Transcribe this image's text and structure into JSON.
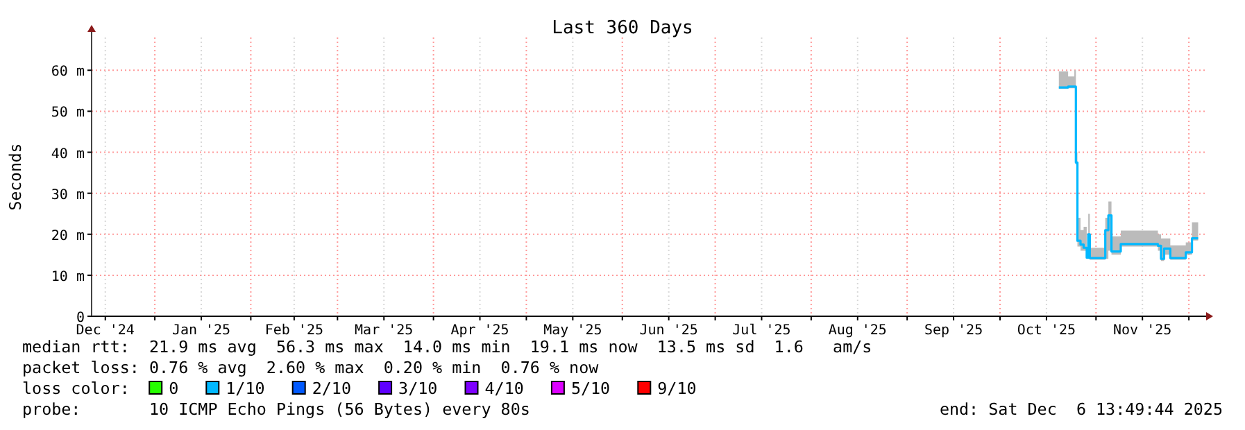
{
  "chart_data": {
    "type": "line",
    "title": "Last 360 Days",
    "ylabel": "Seconds",
    "xlim": [
      "2024-12-11T13:49",
      "2025-12-06T13:49"
    ],
    "xticks": [
      {
        "value": "2024-12-16",
        "label": "Dec '24"
      },
      {
        "value": "2025-01-01",
        "label": null
      },
      {
        "value": "2025-01-16",
        "label": "Jan '25"
      },
      {
        "value": "2025-02-01",
        "label": null
      },
      {
        "value": "2025-02-15",
        "label": "Feb '25"
      },
      {
        "value": "2025-03-01",
        "label": null
      },
      {
        "value": "2025-03-16",
        "label": "Mar '25"
      },
      {
        "value": "2025-04-01",
        "label": null
      },
      {
        "value": "2025-04-16",
        "label": "Apr '25"
      },
      {
        "value": "2025-05-01",
        "label": null
      },
      {
        "value": "2025-05-16",
        "label": "May '25"
      },
      {
        "value": "2025-06-01",
        "label": null
      },
      {
        "value": "2025-06-16",
        "label": "Jun '25"
      },
      {
        "value": "2025-07-01",
        "label": null
      },
      {
        "value": "2025-07-16",
        "label": "Jul '25"
      },
      {
        "value": "2025-08-01",
        "label": null
      },
      {
        "value": "2025-08-16",
        "label": "Aug '25"
      },
      {
        "value": "2025-09-01",
        "label": null
      },
      {
        "value": "2025-09-16",
        "label": "Sep '25"
      },
      {
        "value": "2025-10-01",
        "label": null
      },
      {
        "value": "2025-10-16",
        "label": "Oct '25"
      },
      {
        "value": "2025-11-01",
        "label": null
      },
      {
        "value": "2025-11-16",
        "label": "Nov '25"
      },
      {
        "value": "2025-12-01",
        "label": null
      }
    ],
    "ylim": [
      0,
      68
    ],
    "yticks": [
      {
        "value": 0,
        "label": "0"
      },
      {
        "value": 10,
        "label": "10 m"
      },
      {
        "value": 20,
        "label": "20 m"
      },
      {
        "value": 30,
        "label": "30 m"
      },
      {
        "value": 40,
        "label": "40 m"
      },
      {
        "value": 50,
        "label": "50 m"
      },
      {
        "value": 60,
        "label": "60 m"
      }
    ],
    "grid": true,
    "legend": "bottom",
    "legend_title": "loss color:",
    "x": [
      "2025-10-20",
      "2025-10-23",
      "2025-10-25",
      "2025-10-25T12:00",
      "2025-10-26",
      "2025-10-27",
      "2025-10-28",
      "2025-10-29",
      "2025-10-29T12:00",
      "2025-10-30",
      "2025-11-03",
      "2025-11-04",
      "2025-11-05",
      "2025-11-06",
      "2025-11-08",
      "2025-11-09",
      "2025-11-20",
      "2025-11-21",
      "2025-11-22",
      "2025-11-23",
      "2025-11-25",
      "2025-11-29",
      "2025-11-30",
      "2025-12-02",
      "2025-12-04"
    ],
    "series": [
      {
        "color": "#00b8ff",
        "values": [
          55.8,
          56,
          56,
          37.5,
          18.4,
          17.5,
          16.7,
          14.3,
          20,
          14.2,
          14.2,
          21,
          24.6,
          15.8,
          15.8,
          17.6,
          17.6,
          17.2,
          14,
          16.5,
          14.2,
          14.2,
          15.6,
          19,
          19
        ],
        "lower": [
          55.5,
          55.6,
          55.6,
          37,
          17,
          16,
          16,
          14,
          14,
          13.8,
          13.8,
          14,
          16,
          15,
          15,
          17,
          17,
          16,
          13.5,
          15,
          13.8,
          13.8,
          15,
          18.5,
          18.5
        ],
        "upper": [
          59.7,
          58.5,
          60,
          40,
          24,
          21,
          21.8,
          16,
          25,
          16.7,
          16.7,
          24,
          28,
          19.5,
          19.5,
          20.9,
          20.9,
          20,
          19,
          19,
          17.3,
          17.3,
          18,
          22.9,
          22.9
        ]
      },
      {
        "name": "0",
        "color": "#26ff00",
        "values": [
          null,
          null,
          null,
          null,
          null,
          null,
          null,
          null,
          null,
          null,
          null,
          null,
          null,
          null,
          null,
          null,
          null,
          null,
          null,
          null,
          null,
          null,
          null,
          null,
          null
        ]
      },
      {
        "name": "1/10",
        "color": "#00b8ff",
        "values": [
          null,
          null,
          null,
          null,
          null,
          null,
          null,
          null,
          null,
          null,
          null,
          null,
          null,
          null,
          null,
          null,
          null,
          null,
          null,
          null,
          null,
          null,
          null,
          null,
          null
        ]
      },
      {
        "name": "2/10",
        "color": "#0059ff",
        "values": [
          null,
          null,
          null,
          null,
          null,
          null,
          null,
          null,
          null,
          null,
          null,
          null,
          null,
          null,
          null,
          null,
          null,
          null,
          null,
          null,
          null,
          null,
          null,
          null,
          null
        ]
      },
      {
        "name": "3/10",
        "color": "#5e00ff",
        "values": [
          null,
          null,
          null,
          null,
          null,
          null,
          null,
          null,
          null,
          null,
          null,
          null,
          null,
          null,
          null,
          null,
          null,
          null,
          null,
          null,
          null,
          null,
          null,
          null,
          null
        ]
      },
      {
        "name": "4/10",
        "color": "#7e00ff",
        "values": [
          null,
          null,
          null,
          null,
          null,
          null,
          null,
          null,
          null,
          null,
          null,
          null,
          null,
          null,
          null,
          null,
          null,
          null,
          null,
          null,
          null,
          null,
          null,
          null,
          null
        ]
      },
      {
        "name": "5/10",
        "color": "#dd00ff",
        "values": [
          null,
          null,
          null,
          null,
          null,
          null,
          null,
          null,
          null,
          null,
          null,
          null,
          null,
          null,
          null,
          null,
          null,
          null,
          null,
          null,
          null,
          null,
          null,
          null,
          null
        ]
      },
      {
        "name": "9/10",
        "color": "#ff0000",
        "values": [
          null,
          null,
          null,
          null,
          null,
          null,
          null,
          null,
          null,
          null,
          null,
          null,
          null,
          null,
          null,
          null,
          null,
          null,
          null,
          null,
          null,
          null,
          null,
          null,
          null
        ]
      }
    ],
    "annotations": [
      "median rtt:  21.9 ms avg  56.3 ms max  14.0 ms min  19.1 ms now  13.5 ms sd  1.6   am/s",
      "packet loss: 0.76 % avg  2.60 % max  0.20 % min  0.76 % now",
      "probe:       10 ICMP Echo Pings (56 Bytes) every 80s",
      "end: Sat Dec  6 13:49:44 2025"
    ]
  }
}
